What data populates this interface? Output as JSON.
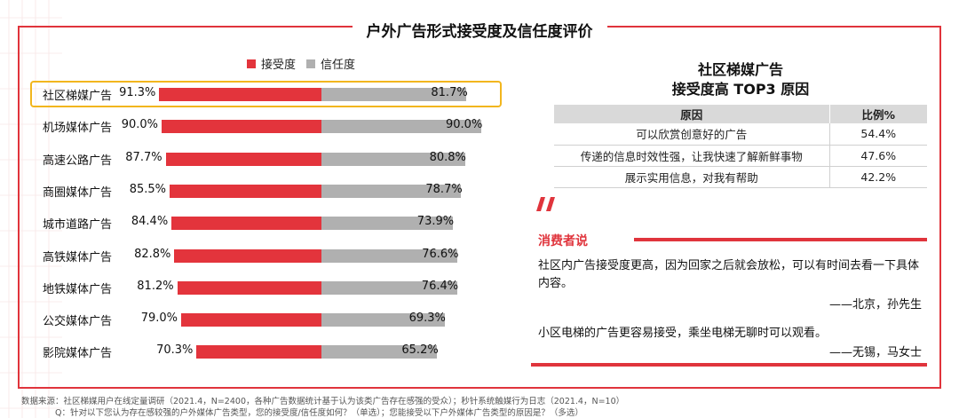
{
  "title": "户外广告形式接受度及信任度评价",
  "legend": {
    "series_a": "接受度",
    "series_b": "信任度"
  },
  "colors": {
    "series_a": "#e3343c",
    "series_b": "#b0b0b0",
    "highlight": "#f2b61e",
    "frame": "#e0343c"
  },
  "chart_data": {
    "type": "bar",
    "orientation": "horizontal-diverging",
    "title": "户外广告形式接受度及信任度评价",
    "categories": [
      "社区梯媒广告",
      "机场媒体广告",
      "高速公路广告",
      "商圈媒体广告",
      "城市道路广告",
      "高铁媒体广告",
      "地铁媒体广告",
      "公交媒体广告",
      "影院媒体广告"
    ],
    "series": [
      {
        "name": "接受度",
        "values": [
          91.3,
          90.0,
          87.7,
          85.5,
          84.4,
          82.8,
          81.2,
          79.0,
          70.3
        ],
        "labels": [
          "91.3%",
          "90.0%",
          "87.7%",
          "85.5%",
          "84.4%",
          "82.8%",
          "81.2%",
          "79.0%",
          "70.3%"
        ]
      },
      {
        "name": "信任度",
        "values": [
          81.7,
          90.0,
          80.8,
          78.7,
          73.9,
          76.6,
          76.4,
          69.3,
          65.2
        ],
        "labels": [
          "81.7%",
          "90.0%",
          "80.8%",
          "78.7%",
          "73.9%",
          "76.6%",
          "76.4%",
          "69.3%",
          "65.2%"
        ]
      }
    ],
    "highlighted_category": "社区梯媒广告",
    "legend_position": "top-left"
  },
  "side_panel": {
    "title_line1": "社区梯媒广告",
    "title_line2": "接受度高 TOP3 原因",
    "table": {
      "headers": [
        "原因",
        "比例%"
      ],
      "rows": [
        [
          "可以欣赏创意好的广告",
          "54.4%"
        ],
        [
          "传递的信息时效性强，让我快速了解新鲜事物",
          "47.6%"
        ],
        [
          "展示实用信息，对我有帮助",
          "42.2%"
        ]
      ]
    }
  },
  "consumer": {
    "heading": "消费者说",
    "quotes": [
      {
        "text": "社区内广告接受度更高，因为回家之后就会放松，可以有时间去看一下具体内容。",
        "author": "——北京，孙先生"
      },
      {
        "text": "小区电梯的广告更容易接受，乘坐电梯无聊时可以观看。",
        "author": "——无锡，马女士"
      }
    ]
  },
  "footnote": {
    "line1": "数据来源：社区梯媒用户在线定量调研（2021.4，N=2400，各种广告数据统计基于认为该类广告存在感强的受众）；秒针系统触媒行为日志（2021.4，N=10）",
    "line2": "Q：针对以下您认为存在感较强的户外媒体广告类型，您的接受度/信任度如何？（单选）；您能接受以下户外媒体广告类型的原因是？（多选）"
  }
}
